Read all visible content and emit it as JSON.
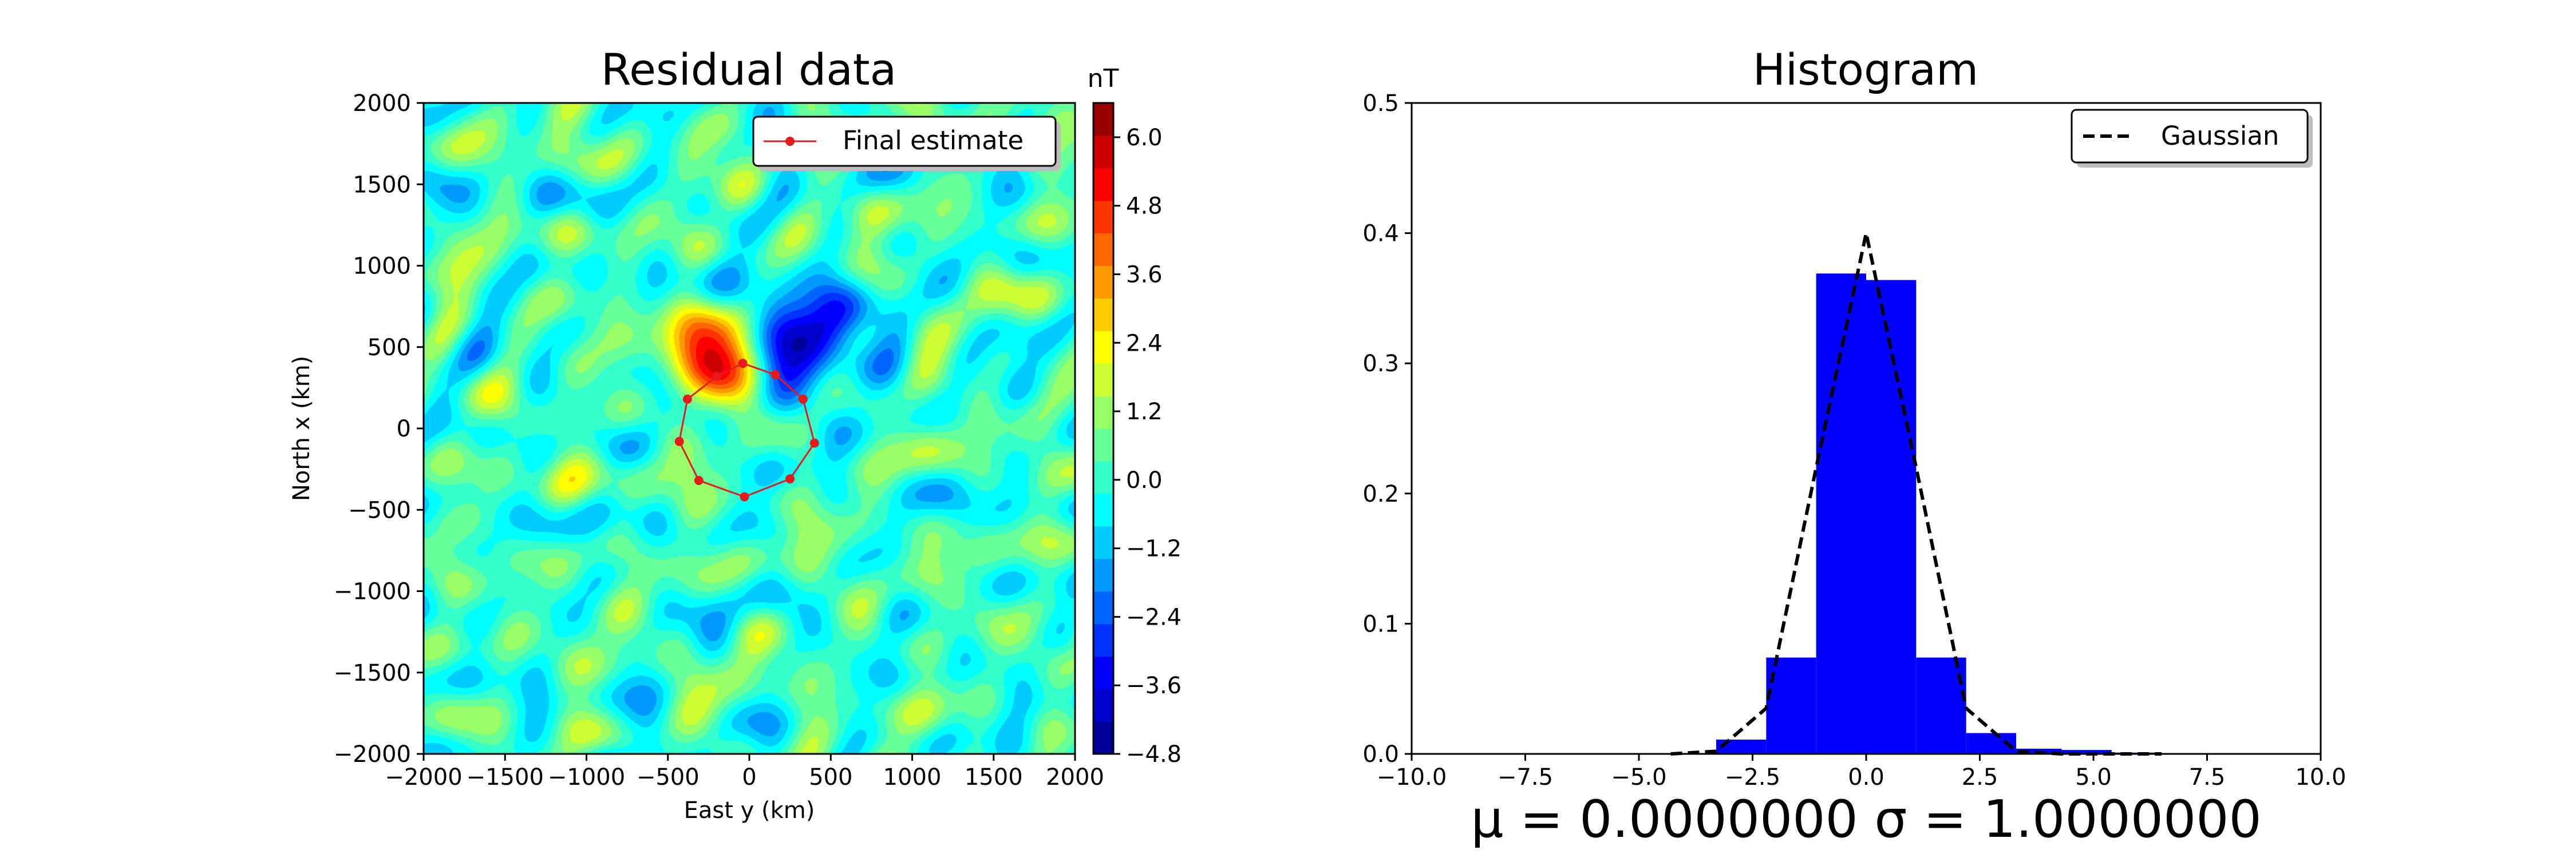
{
  "chart_data": [
    {
      "type": "heatmap",
      "title": "Residual data",
      "xlabel": "East y (km)",
      "ylabel": "North x (km)",
      "xlim": [
        -2000,
        2000
      ],
      "ylim": [
        -2000,
        2000
      ],
      "xticks": [
        -2000,
        -1500,
        -1000,
        -500,
        0,
        500,
        1000,
        1500,
        2000
      ],
      "yticks": [
        -2000,
        -1500,
        -1000,
        -500,
        0,
        500,
        1000,
        1500,
        2000
      ],
      "colorbar": {
        "label": "nT",
        "range": [
          -4.8,
          6.6
        ],
        "ticks": [
          -4.8,
          -3.6,
          -2.4,
          -1.2,
          0.0,
          1.2,
          2.4,
          3.6,
          4.8,
          6.0
        ],
        "colormap": "jet"
      },
      "anomalies": [
        {
          "x": -240,
          "y": 440,
          "amplitude": 6.0,
          "radius": 170
        },
        {
          "x": 360,
          "y": 550,
          "amplitude": -4.5,
          "radius": 220
        }
      ],
      "series": [
        {
          "name": "Final estimate",
          "color": "#e41a1c",
          "marker": "circle",
          "closed": true,
          "points": [
            {
              "x": -40,
              "y": 400
            },
            {
              "x": 160,
              "y": 330
            },
            {
              "x": 330,
              "y": 180
            },
            {
              "x": 400,
              "y": -90
            },
            {
              "x": 250,
              "y": -310
            },
            {
              "x": -30,
              "y": -420
            },
            {
              "x": -310,
              "y": -320
            },
            {
              "x": -430,
              "y": -80
            },
            {
              "x": -380,
              "y": 180
            },
            {
              "x": -200,
              "y": 320
            }
          ]
        }
      ],
      "legend": {
        "position": "upper-right",
        "entries": [
          "Final estimate"
        ]
      }
    },
    {
      "type": "bar",
      "title": "Histogram",
      "xlim": [
        -10,
        10
      ],
      "ylim": [
        0,
        0.5
      ],
      "xticks": [
        -10.0,
        -7.5,
        -5.0,
        -2.5,
        0.0,
        2.5,
        5.0,
        7.5,
        10.0
      ],
      "yticks": [
        0.0,
        0.1,
        0.2,
        0.3,
        0.4,
        0.5
      ],
      "bar_color": "#0000ff",
      "bins": [
        {
          "x0": -4.3,
          "x1": -3.3,
          "value": 0.0
        },
        {
          "x0": -3.3,
          "x1": -2.2,
          "value": 0.011
        },
        {
          "x0": -2.2,
          "x1": -1.1,
          "value": 0.074
        },
        {
          "x0": -1.1,
          "x1": 0.0,
          "value": 0.369
        },
        {
          "x0": 0.0,
          "x1": 1.1,
          "value": 0.364
        },
        {
          "x0": 1.1,
          "x1": 2.2,
          "value": 0.074
        },
        {
          "x0": 2.2,
          "x1": 3.3,
          "value": 0.016
        },
        {
          "x0": 3.3,
          "x1": 4.3,
          "value": 0.004
        },
        {
          "x0": 4.3,
          "x1": 5.4,
          "value": 0.003
        },
        {
          "x0": 5.4,
          "x1": 6.5,
          "value": 0.001
        }
      ],
      "series": [
        {
          "name": "Gaussian",
          "style": "dashed",
          "color": "#000000",
          "x": [
            -4.3,
            -3.3,
            -2.2,
            -1.1,
            0.0,
            1.1,
            2.2,
            3.3,
            4.3,
            5.4,
            6.5
          ],
          "y": [
            0.0,
            0.002,
            0.035,
            0.22,
            0.4,
            0.22,
            0.035,
            0.002,
            0.0,
            0.0,
            0.0
          ]
        }
      ],
      "legend": {
        "position": "upper-right",
        "entries": [
          "Gaussian"
        ]
      },
      "annotation": "μ = 0.0000000  σ = 1.0000000"
    }
  ]
}
